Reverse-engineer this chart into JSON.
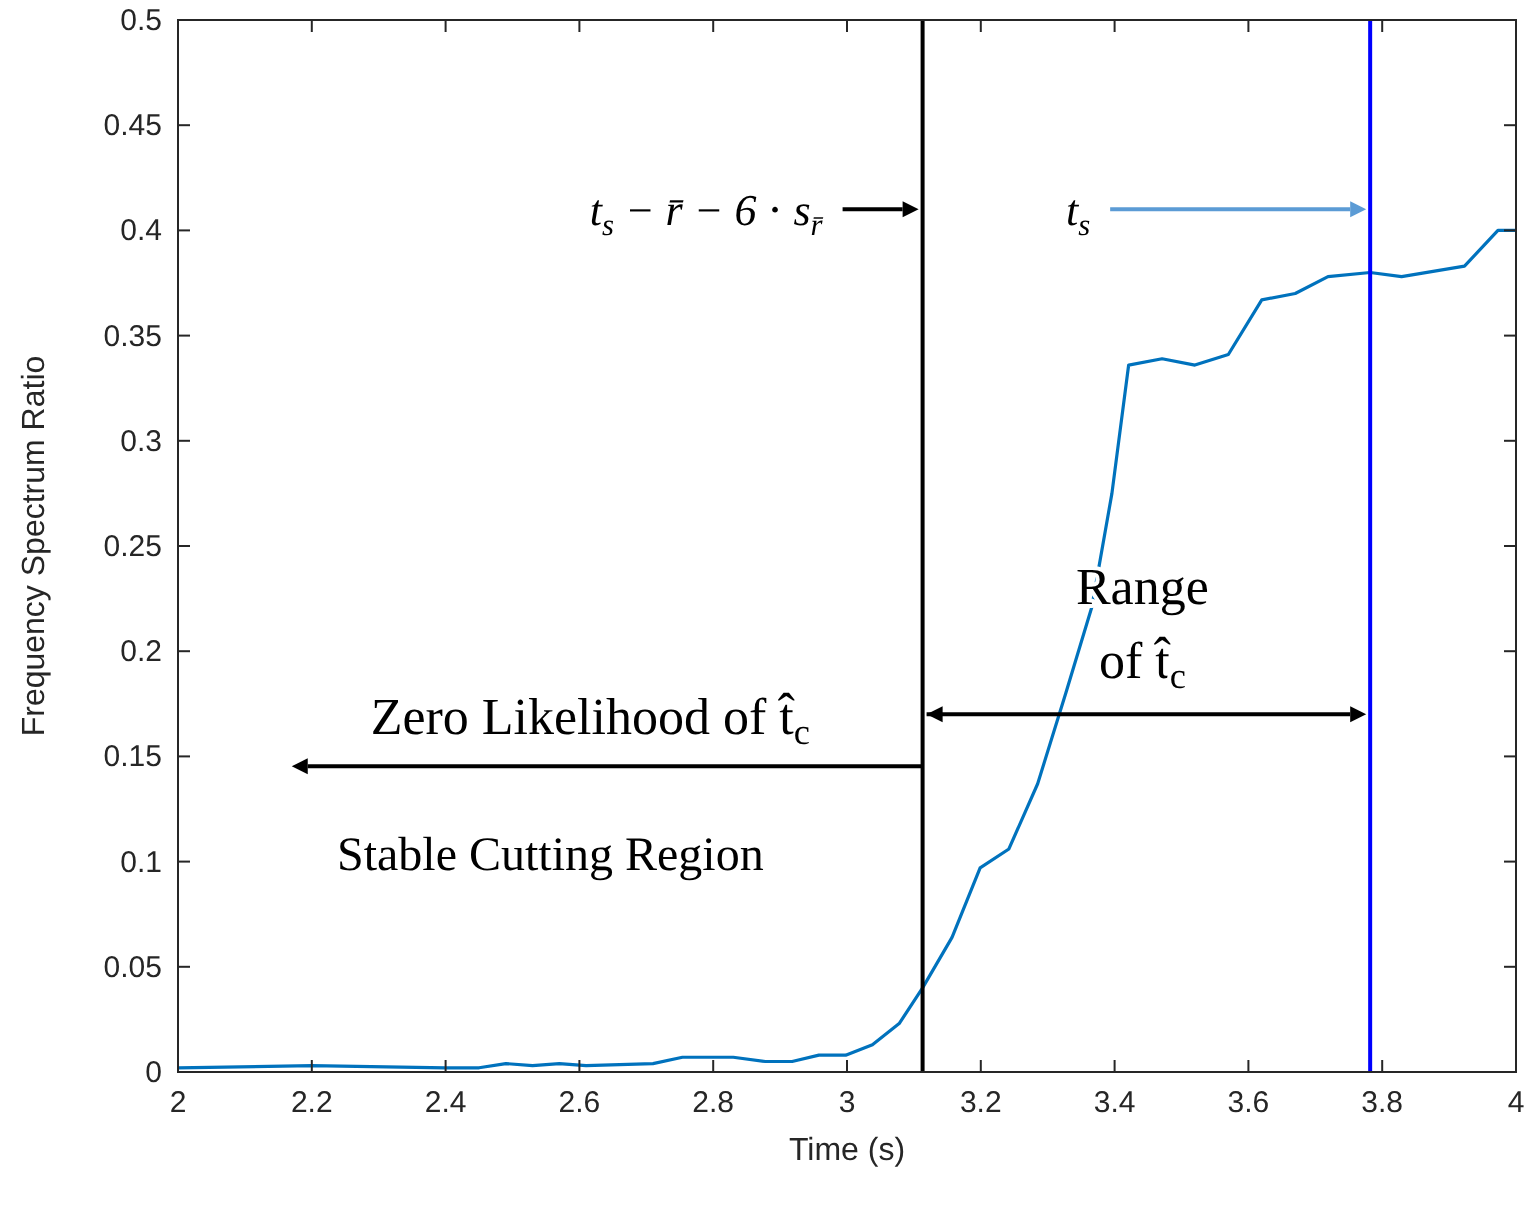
{
  "chart_data": {
    "type": "line",
    "xlabel": "Time (s)",
    "ylabel": "Frequency Spectrum Ratio",
    "xlim": [
      2,
      4
    ],
    "ylim": [
      0,
      0.5
    ],
    "xticks": [
      2,
      2.2,
      2.4,
      2.6,
      2.8,
      3,
      3.2,
      3.4,
      3.6,
      3.8,
      4
    ],
    "yticks": [
      0,
      0.05,
      0.1,
      0.15,
      0.2,
      0.25,
      0.3,
      0.35,
      0.4,
      0.45,
      0.5
    ],
    "series": [
      {
        "color": "#0072bd",
        "x": [
          2,
          2.2,
          2.4,
          2.45,
          2.49,
          2.53,
          2.57,
          2.61,
          2.71,
          2.754,
          2.83,
          2.878,
          2.918,
          2.958,
          2.998,
          3.038,
          3.078,
          3.113,
          3.157,
          3.199,
          3.242,
          3.285,
          3.327,
          3.366,
          3.396,
          3.421,
          3.471,
          3.52,
          3.57,
          3.62,
          3.67,
          3.719,
          3.782,
          3.829,
          3.923,
          3.973,
          4
        ],
        "values": [
          0.002,
          0.003,
          0.002,
          0.002,
          0.004,
          0.003,
          0.004,
          0.003,
          0.004,
          0.007,
          0.007,
          0.005,
          0.005,
          0.008,
          0.008,
          0.013,
          0.023,
          0.04,
          0.064,
          0.097,
          0.106,
          0.137,
          0.18,
          0.221,
          0.275,
          0.336,
          0.339,
          0.336,
          0.341,
          0.367,
          0.37,
          0.378,
          0.38,
          0.378,
          0.383,
          0.4,
          0.4
        ]
      }
    ],
    "ref_lines": [
      {
        "axis": "x",
        "value": 3.113,
        "color": "#000000"
      },
      {
        "axis": "x",
        "value": 3.782,
        "color": "#0000ff"
      }
    ],
    "annotations": [
      {
        "text": "t$_{s}$ − r̄ − 6 ⋅ s$_{r̄}$",
        "x": 3.113,
        "y": 0.41
      },
      "t$_{s}$",
      "Range of t̂$_{c}$",
      "Zero Likelihood of t̂$_{c}$",
      "Stable Cutting Region"
    ]
  }
}
